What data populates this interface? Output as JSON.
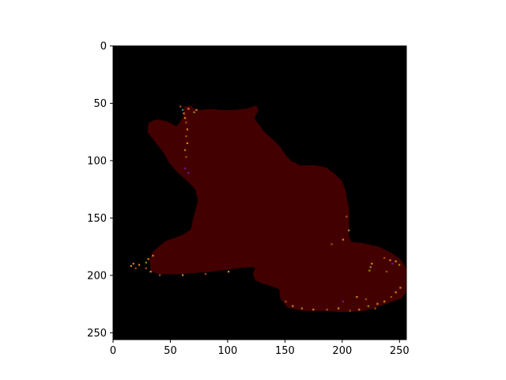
{
  "chart_data": {
    "type": "heatmap",
    "title": "",
    "xlabel": "",
    "ylabel": "",
    "image_shape": [
      256,
      256
    ],
    "xlim": [
      0,
      255
    ],
    "ylim": [
      255,
      0
    ],
    "y_axis_inverted": true,
    "grid": false,
    "legend": "none",
    "x_ticks": [
      0,
      50,
      100,
      150,
      200,
      250
    ],
    "y_ticks": [
      0,
      50,
      100,
      150,
      200,
      250
    ],
    "x_tick_labels": [
      "0",
      "50",
      "100",
      "150",
      "200",
      "250"
    ],
    "y_tick_labels": [
      "0",
      "50",
      "100",
      "150",
      "200",
      "250"
    ],
    "colors": {
      "background": "#000000",
      "segment": "#430000",
      "speckle_orange": "#d77a18",
      "speckle_olive": "#8a8a10",
      "speckle_teal": "#1a8a8a",
      "speckle_purple": "#6a1a8a",
      "speckle_brown": "#a04a10"
    },
    "segment_outline": [
      [
        62,
        60
      ],
      [
        62,
        53
      ],
      [
        68,
        52
      ],
      [
        72,
        56
      ],
      [
        85,
        55
      ],
      [
        100,
        56
      ],
      [
        115,
        55
      ],
      [
        125,
        52
      ],
      [
        127,
        56
      ],
      [
        123,
        63
      ],
      [
        127,
        68
      ],
      [
        132,
        75
      ],
      [
        140,
        82
      ],
      [
        146,
        88
      ],
      [
        150,
        94
      ],
      [
        155,
        100
      ],
      [
        163,
        104
      ],
      [
        176,
        104
      ],
      [
        186,
        106
      ],
      [
        194,
        112
      ],
      [
        200,
        118
      ],
      [
        203,
        126
      ],
      [
        204,
        133
      ],
      [
        206,
        142
      ],
      [
        206,
        156
      ],
      [
        206,
        166
      ],
      [
        208,
        171
      ],
      [
        219,
        172
      ],
      [
        232,
        175
      ],
      [
        244,
        181
      ],
      [
        252,
        187
      ],
      [
        256,
        195
      ],
      [
        256,
        214
      ],
      [
        252,
        220
      ],
      [
        238,
        225
      ],
      [
        220,
        231
      ],
      [
        200,
        232
      ],
      [
        184,
        231
      ],
      [
        166,
        231
      ],
      [
        152,
        228
      ],
      [
        146,
        220
      ],
      [
        145,
        212
      ],
      [
        137,
        209
      ],
      [
        130,
        207
      ],
      [
        124,
        204
      ],
      [
        122,
        199
      ],
      [
        124,
        193
      ],
      [
        115,
        193
      ],
      [
        100,
        195
      ],
      [
        85,
        197
      ],
      [
        70,
        198
      ],
      [
        55,
        199
      ],
      [
        42,
        199
      ],
      [
        33,
        197
      ],
      [
        32,
        186
      ],
      [
        35,
        179
      ],
      [
        46,
        170
      ],
      [
        60,
        165
      ],
      [
        68,
        160
      ],
      [
        70,
        150
      ],
      [
        72,
        143
      ],
      [
        74,
        135
      ],
      [
        72,
        125
      ],
      [
        65,
        118
      ],
      [
        57,
        111
      ],
      [
        49,
        102
      ],
      [
        44,
        93
      ],
      [
        37,
        84
      ],
      [
        30,
        75
      ],
      [
        31,
        67
      ],
      [
        38,
        64
      ],
      [
        48,
        66
      ],
      [
        55,
        70
      ],
      [
        58,
        67
      ]
    ],
    "speckles": [
      {
        "x": 60,
        "y": 55,
        "c": "speckle_teal"
      },
      {
        "x": 61,
        "y": 58,
        "c": "speckle_orange"
      },
      {
        "x": 65,
        "y": 54,
        "c": "speckle_orange"
      },
      {
        "x": 70,
        "y": 57,
        "c": "speckle_olive"
      },
      {
        "x": 72,
        "y": 55,
        "c": "speckle_orange"
      },
      {
        "x": 58,
        "y": 52,
        "c": "speckle_brown"
      },
      {
        "x": 62,
        "y": 62,
        "c": "speckle_orange"
      },
      {
        "x": 63,
        "y": 66,
        "c": "speckle_brown"
      },
      {
        "x": 64,
        "y": 72,
        "c": "speckle_orange"
      },
      {
        "x": 63,
        "y": 78,
        "c": "speckle_brown"
      },
      {
        "x": 64,
        "y": 84,
        "c": "speckle_orange"
      },
      {
        "x": 62,
        "y": 90,
        "c": "speckle_olive"
      },
      {
        "x": 63,
        "y": 96,
        "c": "speckle_brown"
      },
      {
        "x": 62,
        "y": 106,
        "c": "speckle_purple"
      },
      {
        "x": 65,
        "y": 110,
        "c": "speckle_purple"
      },
      {
        "x": 15,
        "y": 191,
        "c": "speckle_orange"
      },
      {
        "x": 17,
        "y": 189,
        "c": "speckle_orange"
      },
      {
        "x": 19,
        "y": 193,
        "c": "speckle_brown"
      },
      {
        "x": 22,
        "y": 190,
        "c": "speckle_orange"
      },
      {
        "x": 28,
        "y": 188,
        "c": "speckle_olive"
      },
      {
        "x": 30,
        "y": 185,
        "c": "speckle_orange"
      },
      {
        "x": 28,
        "y": 193,
        "c": "speckle_brown"
      },
      {
        "x": 34,
        "y": 182,
        "c": "speckle_orange"
      },
      {
        "x": 32,
        "y": 196,
        "c": "speckle_orange"
      },
      {
        "x": 40,
        "y": 199,
        "c": "speckle_brown"
      },
      {
        "x": 60,
        "y": 199,
        "c": "speckle_orange"
      },
      {
        "x": 80,
        "y": 198,
        "c": "speckle_brown"
      },
      {
        "x": 100,
        "y": 196,
        "c": "speckle_orange"
      },
      {
        "x": 190,
        "y": 172,
        "c": "speckle_brown"
      },
      {
        "x": 200,
        "y": 168,
        "c": "speckle_orange"
      },
      {
        "x": 205,
        "y": 160,
        "c": "speckle_olive"
      },
      {
        "x": 203,
        "y": 148,
        "c": "speckle_brown"
      },
      {
        "x": 224,
        "y": 192,
        "c": "speckle_olive"
      },
      {
        "x": 223,
        "y": 195,
        "c": "speckle_olive"
      },
      {
        "x": 225,
        "y": 189,
        "c": "speckle_orange"
      },
      {
        "x": 236,
        "y": 184,
        "c": "speckle_brown"
      },
      {
        "x": 241,
        "y": 186,
        "c": "speckle_orange"
      },
      {
        "x": 243,
        "y": 189,
        "c": "speckle_purple"
      },
      {
        "x": 246,
        "y": 187,
        "c": "speckle_orange"
      },
      {
        "x": 249,
        "y": 190,
        "c": "speckle_olive"
      },
      {
        "x": 238,
        "y": 196,
        "c": "speckle_brown"
      },
      {
        "x": 250,
        "y": 210,
        "c": "speckle_orange"
      },
      {
        "x": 246,
        "y": 214,
        "c": "speckle_orange"
      },
      {
        "x": 242,
        "y": 218,
        "c": "speckle_brown"
      },
      {
        "x": 236,
        "y": 222,
        "c": "speckle_orange"
      },
      {
        "x": 230,
        "y": 224,
        "c": "speckle_orange"
      },
      {
        "x": 228,
        "y": 228,
        "c": "speckle_brown"
      },
      {
        "x": 222,
        "y": 226,
        "c": "speckle_olive"
      },
      {
        "x": 214,
        "y": 229,
        "c": "speckle_orange"
      },
      {
        "x": 206,
        "y": 230,
        "c": "speckle_brown"
      },
      {
        "x": 200,
        "y": 222,
        "c": "speckle_purple"
      },
      {
        "x": 196,
        "y": 228,
        "c": "speckle_orange"
      },
      {
        "x": 186,
        "y": 229,
        "c": "speckle_brown"
      },
      {
        "x": 174,
        "y": 229,
        "c": "speckle_orange"
      },
      {
        "x": 164,
        "y": 228,
        "c": "speckle_olive"
      },
      {
        "x": 156,
        "y": 226,
        "c": "speckle_orange"
      },
      {
        "x": 150,
        "y": 222,
        "c": "speckle_brown"
      },
      {
        "x": 212,
        "y": 218,
        "c": "speckle_orange"
      },
      {
        "x": 220,
        "y": 220,
        "c": "speckle_brown"
      }
    ]
  }
}
